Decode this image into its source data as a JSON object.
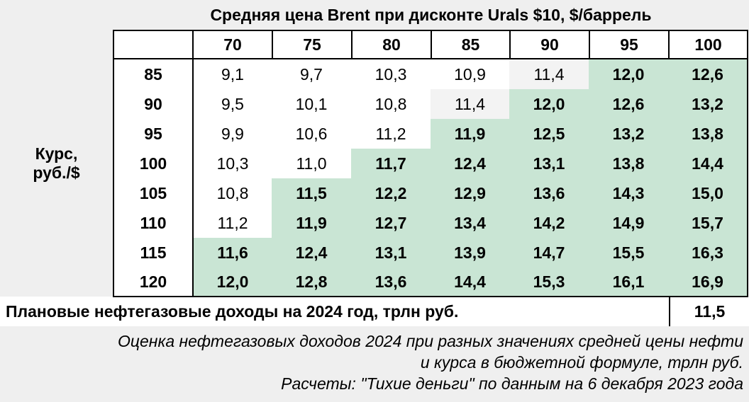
{
  "chart_data": {
    "type": "table",
    "title": "Средняя цена Brent при дисконте Urals $10, $/баррель",
    "row_header": "Курс, руб./$",
    "columns": [
      "70",
      "75",
      "80",
      "85",
      "90",
      "95",
      "100"
    ],
    "rows": [
      "85",
      "90",
      "95",
      "100",
      "105",
      "110",
      "115",
      "120"
    ],
    "values": [
      [
        "9,1",
        "9,7",
        "10,3",
        "10,9",
        "11,4",
        "12,0",
        "12,6"
      ],
      [
        "9,5",
        "10,1",
        "10,8",
        "11,4",
        "12,0",
        "12,6",
        "13,2"
      ],
      [
        "9,9",
        "10,6",
        "11,2",
        "11,9",
        "12,5",
        "13,2",
        "13,8"
      ],
      [
        "10,3",
        "11,0",
        "11,7",
        "12,4",
        "13,1",
        "13,8",
        "14,4"
      ],
      [
        "10,8",
        "11,5",
        "12,2",
        "12,9",
        "13,6",
        "14,3",
        "15,0"
      ],
      [
        "11,2",
        "11,9",
        "12,7",
        "13,4",
        "14,2",
        "14,9",
        "15,7"
      ],
      [
        "11,6",
        "12,4",
        "13,1",
        "13,9",
        "14,7",
        "15,5",
        "16,3"
      ],
      [
        "12,0",
        "12,8",
        "13,6",
        "14,4",
        "15,3",
        "16,1",
        "16,9"
      ]
    ],
    "plan_label": "Плановые нефтегазовые доходы на 2024 год, трлн руб.",
    "plan_value": "11,5",
    "highlight_color": "#c9e5d4",
    "alt_color": "#f3f3f3",
    "caption_lines": [
      "Оценка нефтегазовых доходов 2024 при разных значениях средней цены нефти",
      "и курса в бюджетной формуле, трлн руб.",
      "Расчеты: \"Тихие деньги\" по данным на 6 декабря 2023 года"
    ]
  }
}
